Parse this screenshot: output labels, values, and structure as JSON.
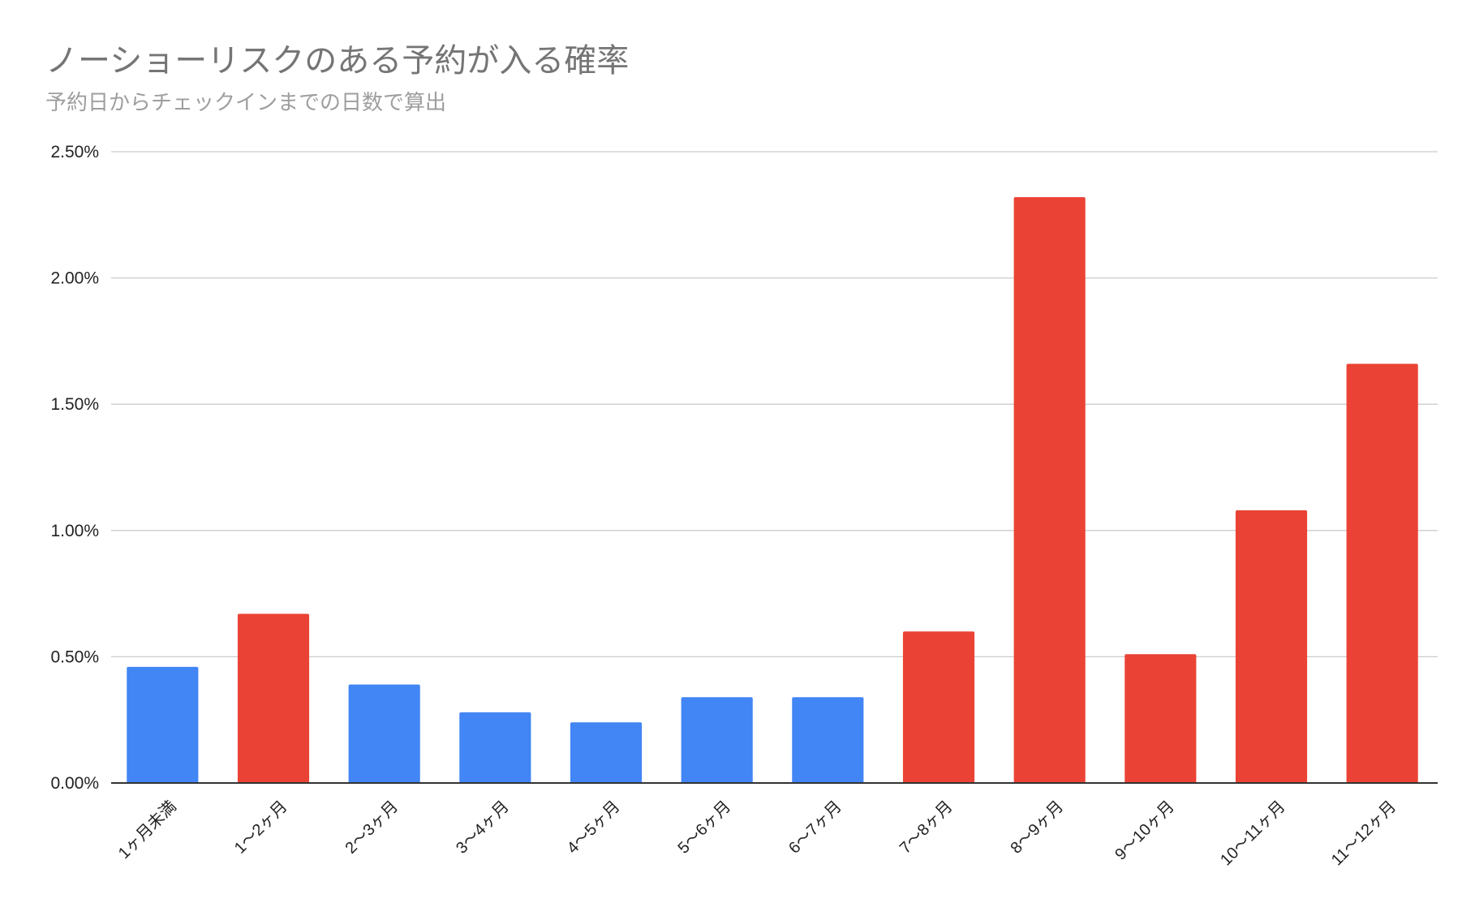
{
  "chart_data": {
    "type": "bar",
    "title": "ノーショーリスクのある予約が入る確率",
    "subtitle": "予約日からチェックインまでの日数で算出",
    "xlabel": "",
    "ylabel": "",
    "ylim": [
      0,
      0.025
    ],
    "yticks": [
      {
        "value": 0.0,
        "label": "0.00%"
      },
      {
        "value": 0.005,
        "label": "0.50%"
      },
      {
        "value": 0.01,
        "label": "1.00%"
      },
      {
        "value": 0.015,
        "label": "1.50%"
      },
      {
        "value": 0.02,
        "label": "2.00%"
      },
      {
        "value": 0.025,
        "label": "2.50%"
      }
    ],
    "grid": true,
    "legend": "none",
    "colors": {
      "low": "#4285f4",
      "high": "#ea4335",
      "grid": "#cccccc",
      "axis": "#333333",
      "text": "#222222"
    },
    "categories": [
      "1ヶ月未満",
      "1〜2ヶ月",
      "2〜3ヶ月",
      "3〜4ヶ月",
      "4〜5ヶ月",
      "5〜6ヶ月",
      "6〜7ヶ月",
      "7〜8ヶ月",
      "8〜9ヶ月",
      "9〜10ヶ月",
      "10〜11ヶ月",
      "11〜12ヶ月"
    ],
    "values": [
      0.0046,
      0.0067,
      0.0039,
      0.0028,
      0.0024,
      0.0034,
      0.0034,
      0.006,
      0.0232,
      0.0051,
      0.0108,
      0.0166
    ],
    "bar_colors": [
      "#4285f4",
      "#ea4335",
      "#4285f4",
      "#4285f4",
      "#4285f4",
      "#4285f4",
      "#4285f4",
      "#ea4335",
      "#ea4335",
      "#ea4335",
      "#ea4335",
      "#ea4335"
    ]
  }
}
